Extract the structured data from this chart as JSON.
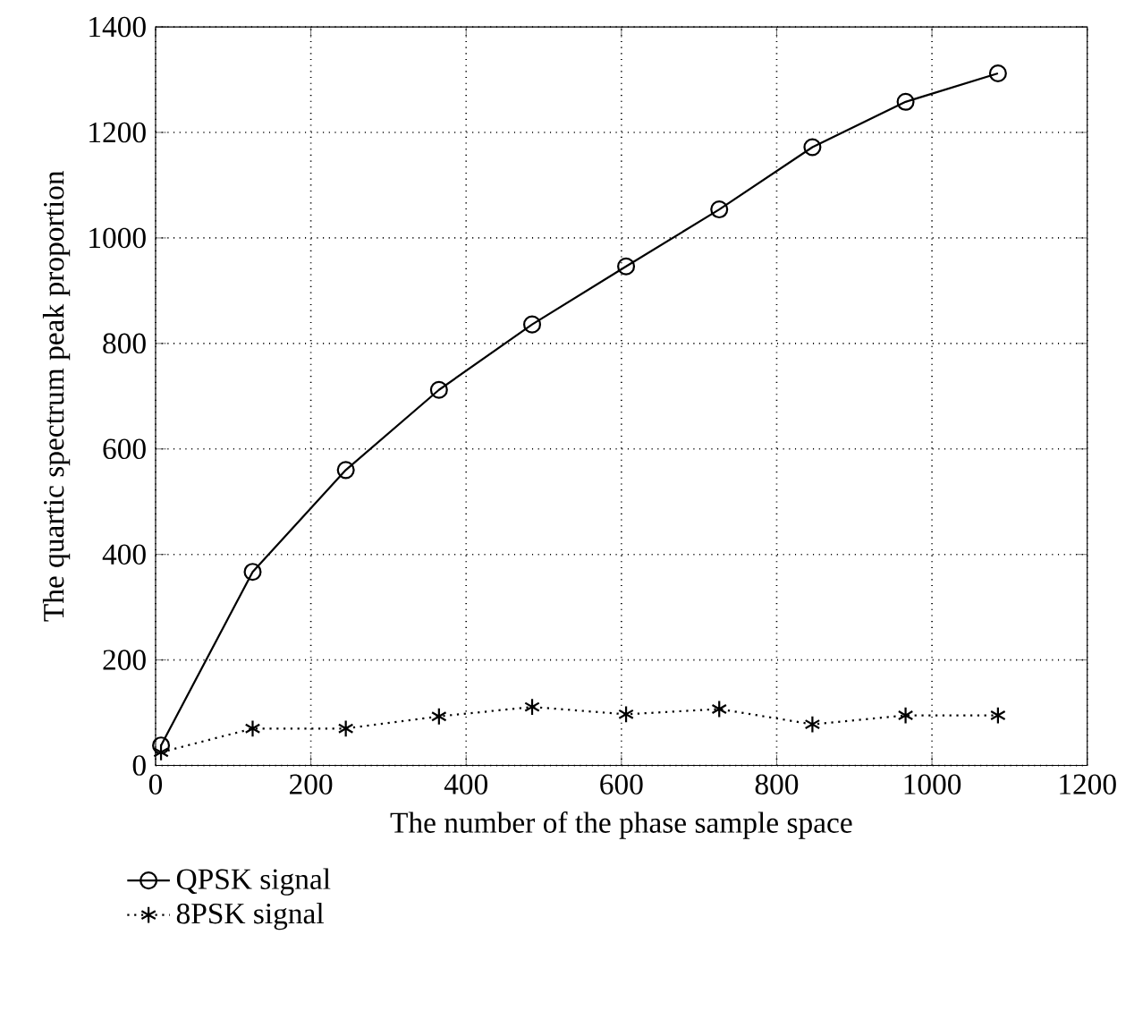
{
  "chart_data": {
    "type": "line",
    "xlabel": "The number of the phase sample space",
    "ylabel": "The quartic spectrum peak proportion",
    "x": [
      7,
      125,
      245,
      365,
      485,
      606,
      726,
      846,
      966,
      1085
    ],
    "series": [
      {
        "name": "QPSK signal",
        "color": "#000000",
        "marker": "circle",
        "line_style": "solid",
        "values": [
          38,
          367,
          560,
          712,
          836,
          946,
          1054,
          1172,
          1258,
          1312
        ]
      },
      {
        "name": "8PSK signal",
        "color": "#000000",
        "marker": "cross",
        "line_style": "dotted",
        "values": [
          25,
          70,
          70,
          93,
          111,
          97,
          107,
          78,
          95,
          95
        ]
      }
    ],
    "xlim": [
      0,
      1200
    ],
    "xticks": [
      0,
      200,
      400,
      600,
      800,
      1000,
      1200
    ],
    "ylim": [
      0,
      1400
    ],
    "yticks": [
      0,
      200,
      400,
      600,
      800,
      1000,
      1200,
      1400
    ],
    "grid": true,
    "legend": "bottom"
  }
}
